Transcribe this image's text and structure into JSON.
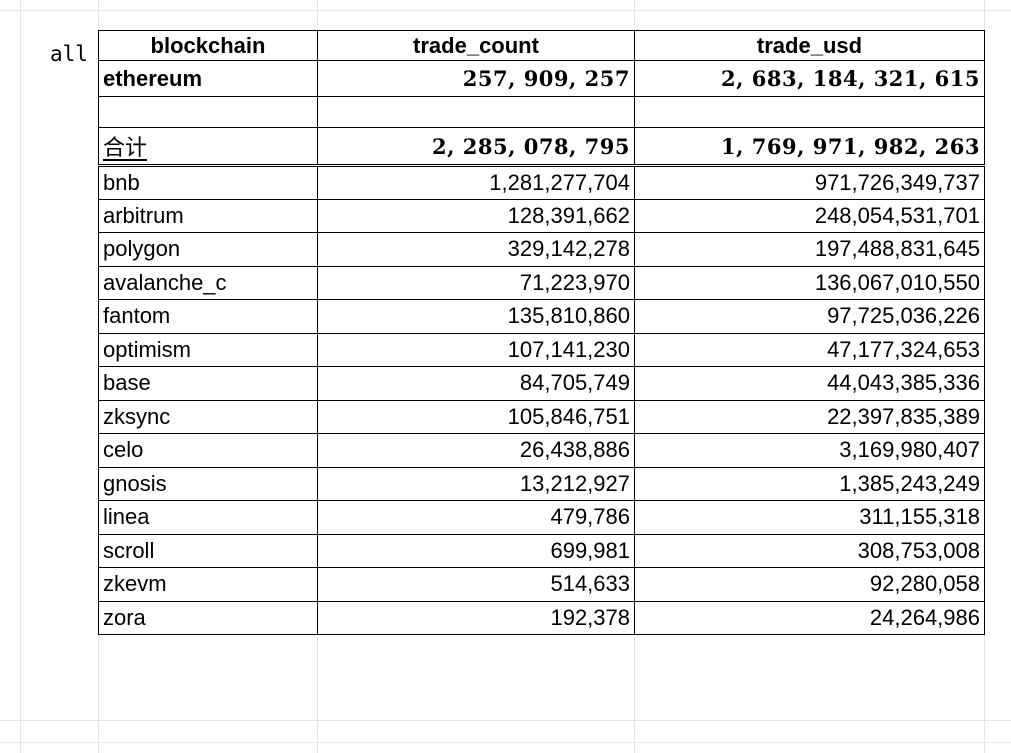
{
  "sheet_label": "all",
  "headers": [
    "blockchain",
    "trade_count",
    "trade_usd"
  ],
  "highlight": {
    "name": "ethereum",
    "trade_count": "257, 909, 257",
    "trade_usd": "2, 683, 184, 321, 615"
  },
  "total": {
    "label": "合计",
    "trade_count": "2, 285, 078, 795",
    "trade_usd": "1, 769, 971, 982, 263"
  },
  "rows": [
    {
      "name": "bnb",
      "trade_count": "1,281,277,704",
      "trade_usd": "971,726,349,737"
    },
    {
      "name": "arbitrum",
      "trade_count": "128,391,662",
      "trade_usd": "248,054,531,701"
    },
    {
      "name": "polygon",
      "trade_count": "329,142,278",
      "trade_usd": "197,488,831,645"
    },
    {
      "name": "avalanche_c",
      "trade_count": "71,223,970",
      "trade_usd": "136,067,010,550"
    },
    {
      "name": "fantom",
      "trade_count": "135,810,860",
      "trade_usd": "97,725,036,226"
    },
    {
      "name": "optimism",
      "trade_count": "107,141,230",
      "trade_usd": "47,177,324,653"
    },
    {
      "name": "base",
      "trade_count": "84,705,749",
      "trade_usd": "44,043,385,336"
    },
    {
      "name": "zksync",
      "trade_count": "105,846,751",
      "trade_usd": "22,397,835,389"
    },
    {
      "name": "celo",
      "trade_count": "26,438,886",
      "trade_usd": "3,169,980,407"
    },
    {
      "name": "gnosis",
      "trade_count": "13,212,927",
      "trade_usd": "1,385,243,249"
    },
    {
      "name": "linea",
      "trade_count": "479,786",
      "trade_usd": "311,155,318"
    },
    {
      "name": "scroll",
      "trade_count": "699,981",
      "trade_usd": "308,753,008"
    },
    {
      "name": "zkevm",
      "trade_count": "514,633",
      "trade_usd": "92,280,058"
    },
    {
      "name": "zora",
      "trade_count": "192,378",
      "trade_usd": "24,264,986"
    }
  ]
}
